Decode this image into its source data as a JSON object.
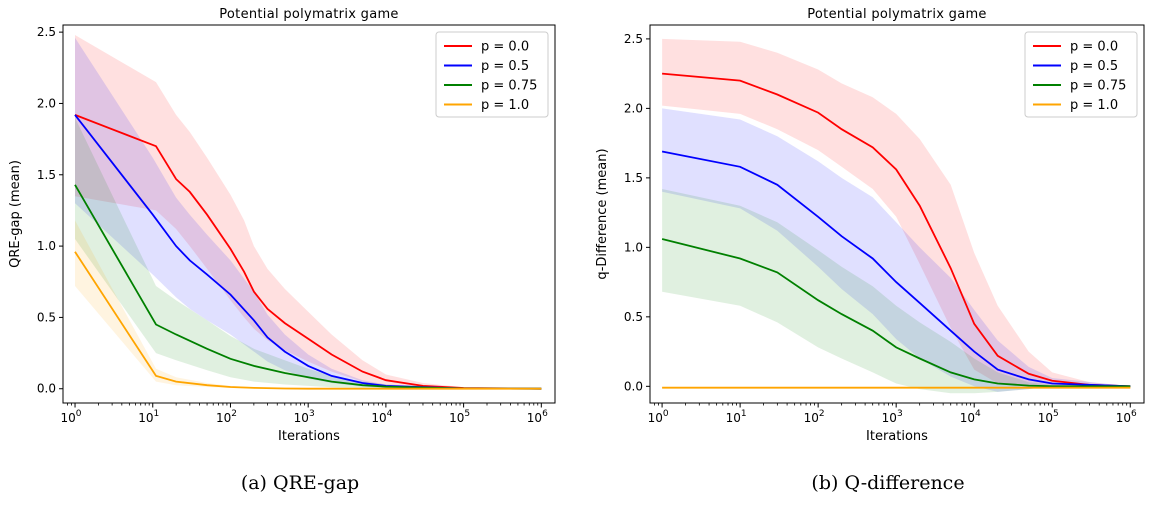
{
  "figure": {
    "captions": [
      "(a) QRE-gap",
      "(b) Q-difference"
    ]
  },
  "chart_data": [
    {
      "type": "line",
      "title": "Potential polymatrix game",
      "xlabel": "Iterations",
      "ylabel": "QRE-gap (mean)",
      "xscale": "log",
      "xlim": [
        0.7,
        1500000
      ],
      "ylim": [
        -0.1,
        2.55
      ],
      "yticks": [
        0.0,
        0.5,
        1.0,
        1.5,
        2.0,
        2.5
      ],
      "ytick_labels": [
        "0.0",
        "0.5",
        "1.0",
        "1.5",
        "2.0",
        "2.5"
      ],
      "xticks": [
        1,
        10,
        100,
        1000,
        10000,
        100000,
        1000000
      ],
      "xtick_labels": [
        {
          "base": "10",
          "exp": "0"
        },
        {
          "base": "10",
          "exp": "1"
        },
        {
          "base": "10",
          "exp": "2"
        },
        {
          "base": "10",
          "exp": "3"
        },
        {
          "base": "10",
          "exp": "4"
        },
        {
          "base": "10",
          "exp": "5"
        },
        {
          "base": "10",
          "exp": "6"
        }
      ],
      "legend_position": "top-right",
      "series": [
        {
          "name": "p = 0.0",
          "color": "#ff0000",
          "x": [
            1,
            11,
            20,
            30,
            50,
            100,
            150,
            200,
            300,
            500,
            1000,
            2000,
            5000,
            10000,
            30000,
            100000,
            1000000
          ],
          "y": [
            1.92,
            1.7,
            1.47,
            1.38,
            1.22,
            0.98,
            0.82,
            0.68,
            0.56,
            0.46,
            0.35,
            0.24,
            0.12,
            0.06,
            0.02,
            0.005,
            0.0
          ],
          "lower": [
            1.35,
            1.25,
            1.12,
            1.0,
            0.84,
            0.62,
            0.5,
            0.42,
            0.34,
            0.27,
            0.19,
            0.12,
            0.05,
            0.02,
            0.005,
            0.0,
            0.0
          ],
          "upper": [
            2.48,
            2.15,
            1.92,
            1.8,
            1.62,
            1.36,
            1.18,
            1.0,
            0.84,
            0.7,
            0.54,
            0.38,
            0.2,
            0.1,
            0.04,
            0.01,
            0.0
          ]
        },
        {
          "name": "p = 0.5",
          "color": "#0000ff",
          "x": [
            1,
            10,
            20,
            30,
            50,
            100,
            200,
            300,
            500,
            1000,
            2000,
            5000,
            10000,
            100000,
            1000000
          ],
          "y": [
            1.92,
            1.22,
            1.0,
            0.9,
            0.8,
            0.66,
            0.48,
            0.36,
            0.26,
            0.16,
            0.09,
            0.04,
            0.02,
            0.002,
            0.0
          ],
          "lower": [
            1.3,
            0.8,
            0.64,
            0.56,
            0.48,
            0.38,
            0.26,
            0.19,
            0.13,
            0.07,
            0.04,
            0.015,
            0.005,
            0.0,
            0.0
          ],
          "upper": [
            2.46,
            1.62,
            1.34,
            1.22,
            1.08,
            0.9,
            0.68,
            0.52,
            0.38,
            0.24,
            0.14,
            0.06,
            0.03,
            0.005,
            0.0
          ]
        },
        {
          "name": "p = 0.75",
          "color": "#008000",
          "x": [
            1,
            11,
            20,
            50,
            100,
            200,
            500,
            1000,
            2000,
            5000,
            10000,
            100000,
            1000000
          ],
          "y": [
            1.43,
            0.45,
            0.38,
            0.28,
            0.21,
            0.16,
            0.11,
            0.08,
            0.05,
            0.025,
            0.015,
            0.002,
            0.0
          ],
          "lower": [
            1.05,
            0.25,
            0.2,
            0.13,
            0.08,
            0.05,
            0.03,
            0.02,
            0.01,
            0.005,
            0.002,
            0.0,
            0.0
          ],
          "upper": [
            1.9,
            0.72,
            0.62,
            0.48,
            0.37,
            0.28,
            0.2,
            0.14,
            0.09,
            0.05,
            0.03,
            0.005,
            0.0
          ]
        },
        {
          "name": "p = 1.0",
          "color": "#ffa500",
          "x": [
            1,
            11,
            20,
            50,
            100,
            200,
            500,
            1000,
            10000,
            1000000
          ],
          "y": [
            0.96,
            0.09,
            0.05,
            0.025,
            0.012,
            0.006,
            0.002,
            0.0,
            0.0,
            0.0
          ],
          "lower": [
            0.72,
            0.05,
            0.025,
            0.012,
            0.005,
            0.002,
            0.0,
            0.0,
            0.0,
            0.0
          ],
          "upper": [
            1.18,
            0.14,
            0.08,
            0.04,
            0.02,
            0.01,
            0.005,
            0.0,
            0.0,
            0.0
          ]
        }
      ]
    },
    {
      "type": "line",
      "title": "Potential polymatrix game",
      "xlabel": "Iterations",
      "ylabel": "q-Difference (mean)",
      "xscale": "log",
      "xlim": [
        0.7,
        1500000
      ],
      "ylim": [
        -0.12,
        2.6
      ],
      "yticks": [
        0.0,
        0.5,
        1.0,
        1.5,
        2.0,
        2.5
      ],
      "ytick_labels": [
        "0.0",
        "0.5",
        "1.0",
        "1.5",
        "2.0",
        "2.5"
      ],
      "xticks": [
        1,
        10,
        100,
        1000,
        10000,
        100000,
        1000000
      ],
      "xtick_labels": [
        {
          "base": "10",
          "exp": "0"
        },
        {
          "base": "10",
          "exp": "1"
        },
        {
          "base": "10",
          "exp": "2"
        },
        {
          "base": "10",
          "exp": "3"
        },
        {
          "base": "10",
          "exp": "4"
        },
        {
          "base": "10",
          "exp": "5"
        },
        {
          "base": "10",
          "exp": "6"
        }
      ],
      "legend_position": "top-right",
      "series": [
        {
          "name": "p = 0.0",
          "color": "#ff0000",
          "x": [
            1,
            10,
            30,
            100,
            200,
            500,
            1000,
            2000,
            5000,
            10000,
            20000,
            50000,
            100000,
            300000,
            1000000
          ],
          "y": [
            2.25,
            2.2,
            2.1,
            1.97,
            1.85,
            1.72,
            1.56,
            1.3,
            0.85,
            0.45,
            0.22,
            0.09,
            0.04,
            0.01,
            0.0
          ],
          "lower": [
            2.02,
            1.96,
            1.85,
            1.7,
            1.58,
            1.42,
            1.22,
            0.88,
            0.42,
            0.12,
            0.02,
            0.0,
            0.0,
            0.0,
            0.0
          ],
          "upper": [
            2.5,
            2.48,
            2.4,
            2.28,
            2.18,
            2.08,
            1.96,
            1.78,
            1.45,
            0.96,
            0.58,
            0.25,
            0.1,
            0.03,
            0.0
          ]
        },
        {
          "name": "p = 0.5",
          "color": "#0000ff",
          "x": [
            1,
            10,
            30,
            100,
            200,
            500,
            1000,
            2000,
            5000,
            10000,
            20000,
            50000,
            100000,
            1000000
          ],
          "y": [
            1.69,
            1.58,
            1.45,
            1.22,
            1.08,
            0.92,
            0.75,
            0.6,
            0.4,
            0.25,
            0.12,
            0.05,
            0.02,
            0.0
          ],
          "lower": [
            1.4,
            1.28,
            1.12,
            0.86,
            0.7,
            0.52,
            0.34,
            0.2,
            0.07,
            0.0,
            -0.04,
            -0.02,
            0.0,
            0.0
          ],
          "upper": [
            2.0,
            1.92,
            1.8,
            1.62,
            1.5,
            1.36,
            1.18,
            1.0,
            0.78,
            0.55,
            0.33,
            0.14,
            0.06,
            0.0
          ]
        },
        {
          "name": "p = 0.75",
          "color": "#008000",
          "x": [
            1,
            10,
            30,
            100,
            200,
            500,
            1000,
            2000,
            5000,
            10000,
            20000,
            50000,
            100000,
            1000000
          ],
          "y": [
            1.06,
            0.92,
            0.82,
            0.62,
            0.52,
            0.4,
            0.28,
            0.2,
            0.1,
            0.05,
            0.02,
            0.005,
            0.0,
            0.0
          ],
          "lower": [
            0.68,
            0.58,
            0.46,
            0.28,
            0.2,
            0.1,
            0.02,
            -0.02,
            -0.05,
            -0.05,
            -0.04,
            -0.02,
            0.0,
            0.0
          ],
          "upper": [
            1.42,
            1.3,
            1.18,
            0.98,
            0.86,
            0.72,
            0.58,
            0.46,
            0.32,
            0.2,
            0.1,
            0.03,
            0.01,
            0.0
          ]
        },
        {
          "name": "p = 1.0",
          "color": "#ffa500",
          "x": [
            1,
            1000000
          ],
          "y": [
            -0.01,
            -0.01
          ],
          "lower": [
            -0.01,
            -0.01
          ],
          "upper": [
            -0.01,
            -0.01
          ]
        }
      ]
    }
  ]
}
